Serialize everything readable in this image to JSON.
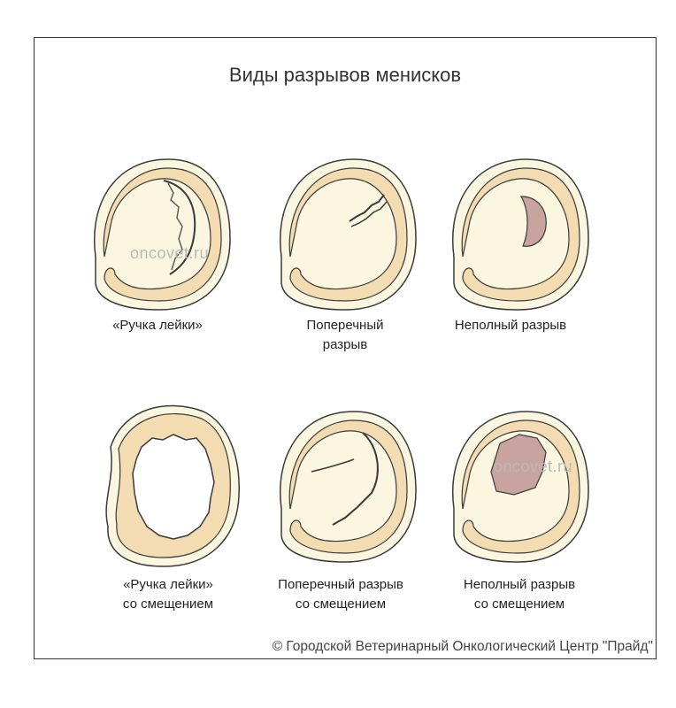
{
  "title": "Виды разрывов менисков",
  "watermark": "oncovet.ru",
  "copyright": "© Городской Ветеринарный Онкологический Центр \"Прайд\"",
  "colors": {
    "meniscus": "#f3dcb1",
    "outline": "#3a3a3a",
    "rim": "#fbf6df",
    "tear": "#c8a3a0"
  },
  "figures": [
    {
      "caption_lines": [
        "«Ручка лейки»"
      ]
    },
    {
      "caption_lines": [
        "Поперечный",
        "разрыв"
      ]
    },
    {
      "caption_lines": [
        "Неполный разрыв"
      ]
    },
    {
      "caption_lines": [
        "«Ручка лейки»",
        "со смещением"
      ]
    },
    {
      "caption_lines": [
        "Поперечный разрыв",
        "со смещением"
      ]
    },
    {
      "caption_lines": [
        "Неполный разрыв",
        "со смещением"
      ]
    }
  ]
}
